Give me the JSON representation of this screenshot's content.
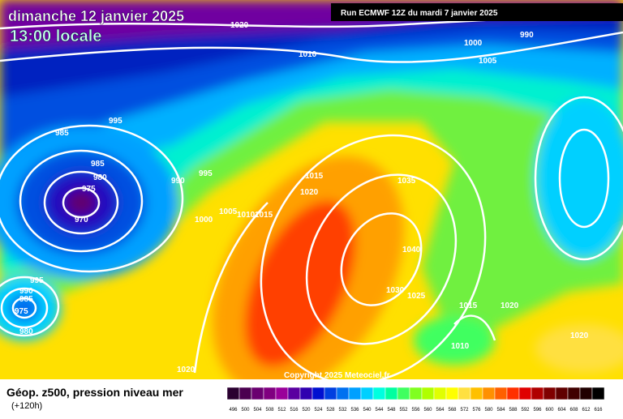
{
  "header": {
    "date": "dimanche 12 janvier 2025",
    "time": "13:00 locale",
    "run": "Run ECMWF 12Z du mardi 7 janvier 2025"
  },
  "map": {
    "copyright": "Copyright 2025 Meteociel.fr",
    "isobar_labels": [
      "1020",
      "1010",
      "1000",
      "990",
      "1005",
      "995",
      "985",
      "985",
      "980",
      "975",
      "970",
      "990",
      "995",
      "1000",
      "1005",
      "1010",
      "1015",
      "1015",
      "1020",
      "1035",
      "1040",
      "1030",
      "1025",
      "1015",
      "1020",
      "1010",
      "1020",
      "1020",
      "995",
      "990",
      "985",
      "975",
      "980"
    ]
  },
  "legend": {
    "title": "Géop. z500, pression niveau mer",
    "lead": "(+120h)",
    "scale": [
      {
        "label": "496",
        "color": "#2a0030"
      },
      {
        "label": "500",
        "color": "#4b0050"
      },
      {
        "label": "504",
        "color": "#6a0070"
      },
      {
        "label": "508",
        "color": "#800080"
      },
      {
        "label": "512",
        "color": "#9a009a"
      },
      {
        "label": "516",
        "color": "#5a00a0"
      },
      {
        "label": "520",
        "color": "#3000b0"
      },
      {
        "label": "524",
        "color": "#0010d0"
      },
      {
        "label": "528",
        "color": "#0040e0"
      },
      {
        "label": "532",
        "color": "#0070f0"
      },
      {
        "label": "536",
        "color": "#00a0ff"
      },
      {
        "label": "540",
        "color": "#00d0ff"
      },
      {
        "label": "544",
        "color": "#00ffe0"
      },
      {
        "label": "548",
        "color": "#00ffa0"
      },
      {
        "label": "552",
        "color": "#40ff60"
      },
      {
        "label": "556",
        "color": "#80ff20"
      },
      {
        "label": "560",
        "color": "#b0ff00"
      },
      {
        "label": "564",
        "color": "#e0ff00"
      },
      {
        "label": "568",
        "color": "#ffff00"
      },
      {
        "label": "572",
        "color": "#ffe040"
      },
      {
        "label": "576",
        "color": "#ffc000"
      },
      {
        "label": "580",
        "color": "#ff9000"
      },
      {
        "label": "584",
        "color": "#ff6000"
      },
      {
        "label": "588",
        "color": "#ff3000"
      },
      {
        "label": "592",
        "color": "#e00000"
      },
      {
        "label": "596",
        "color": "#b00000"
      },
      {
        "label": "600",
        "color": "#800000"
      },
      {
        "label": "604",
        "color": "#600000"
      },
      {
        "label": "608",
        "color": "#400000"
      },
      {
        "label": "612",
        "color": "#200000"
      },
      {
        "label": "616",
        "color": "#000000"
      }
    ]
  }
}
